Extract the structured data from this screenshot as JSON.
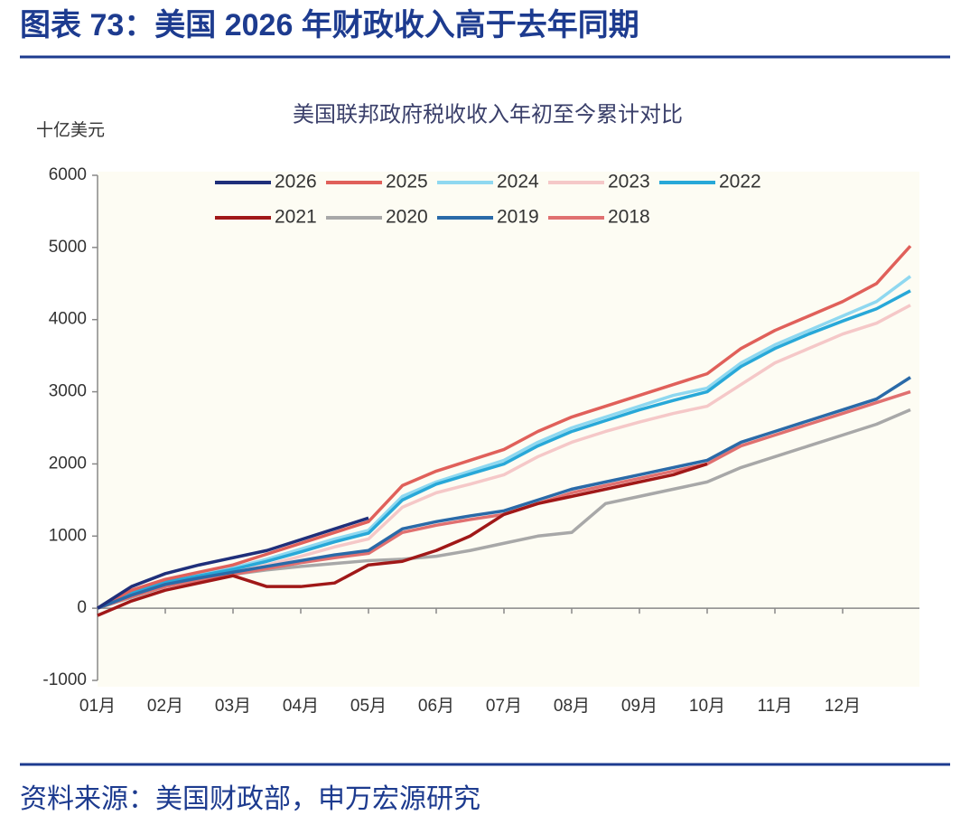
{
  "figure_title": "图表 73：美国 2026 年财政收入高于去年同期",
  "source": "资料来源：美国财政部，申万宏源研究",
  "chart_data": {
    "type": "line",
    "title": "美国联邦政府税收收入年初至今累计对比",
    "y_label": "十亿美元",
    "x": [
      0,
      0.5,
      1,
      1.5,
      2,
      2.5,
      3,
      3.5,
      4,
      4.5,
      5,
      5.5,
      6,
      6.5,
      7,
      7.5,
      8,
      8.5,
      9,
      9.5,
      10,
      10.5,
      11,
      11.5,
      12
    ],
    "xlim": [
      0,
      12
    ],
    "xticks": [
      {
        "value": 0,
        "label": "01月"
      },
      {
        "value": 1,
        "label": "02月"
      },
      {
        "value": 2,
        "label": "03月"
      },
      {
        "value": 3,
        "label": "04月"
      },
      {
        "value": 4,
        "label": "05月"
      },
      {
        "value": 5,
        "label": "06月"
      },
      {
        "value": 6,
        "label": "07月"
      },
      {
        "value": 7,
        "label": "08月"
      },
      {
        "value": 8,
        "label": "09月"
      },
      {
        "value": 9,
        "label": "10月"
      },
      {
        "value": 10,
        "label": "11月"
      },
      {
        "value": 11,
        "label": "12月"
      }
    ],
    "ylim": [
      -1000,
      6000
    ],
    "yticks": [
      -1000,
      0,
      1000,
      2000,
      3000,
      4000,
      5000,
      6000
    ],
    "series": [
      {
        "name": "2026",
        "color": "#1f2f7a",
        "values": [
          0,
          300,
          480,
          600,
          700,
          800,
          950,
          1100,
          1250,
          null,
          null,
          null,
          null,
          null,
          null,
          null,
          null,
          null,
          null,
          null,
          null,
          null,
          null,
          null,
          null
        ]
      },
      {
        "name": "2025",
        "color": "#e0605a",
        "values": [
          0,
          250,
          400,
          500,
          600,
          750,
          900,
          1050,
          1200,
          1700,
          1900,
          2050,
          2200,
          2450,
          2650,
          2800,
          2950,
          3100,
          3250,
          3600,
          3850,
          4050,
          4250,
          4500,
          5020
        ]
      },
      {
        "name": "2024",
        "color": "#8fd8f0",
        "values": [
          0,
          230,
          380,
          470,
          560,
          680,
          820,
          960,
          1080,
          1550,
          1750,
          1900,
          2050,
          2300,
          2500,
          2650,
          2800,
          2950,
          3050,
          3400,
          3650,
          3850,
          4050,
          4250,
          4600
        ]
      },
      {
        "name": "2023",
        "color": "#f5c8c8",
        "values": [
          0,
          200,
          340,
          420,
          500,
          600,
          720,
          850,
          960,
          1400,
          1600,
          1720,
          1850,
          2100,
          2300,
          2450,
          2580,
          2700,
          2800,
          3100,
          3400,
          3600,
          3800,
          3950,
          4200
        ]
      },
      {
        "name": "2022",
        "color": "#28a8d8",
        "values": [
          0,
          220,
          360,
          450,
          540,
          650,
          780,
          920,
          1040,
          1500,
          1720,
          1860,
          2000,
          2250,
          2450,
          2600,
          2750,
          2880,
          3000,
          3350,
          3600,
          3800,
          3980,
          4150,
          4400
        ]
      },
      {
        "name": "2021",
        "color": "#a01818",
        "values": [
          -100,
          100,
          250,
          350,
          450,
          300,
          300,
          350,
          600,
          650,
          800,
          1000,
          1300,
          1450,
          1550,
          1650,
          1750,
          1850,
          2000,
          null,
          null,
          null,
          null,
          null,
          null
        ]
      },
      {
        "name": "2020",
        "color": "#a8a8a8",
        "values": [
          0,
          150,
          300,
          400,
          470,
          530,
          580,
          620,
          660,
          680,
          720,
          800,
          900,
          1000,
          1050,
          1450,
          1550,
          1650,
          1750,
          1950,
          2100,
          2250,
          2400,
          2550,
          2750
        ]
      },
      {
        "name": "2019",
        "color": "#2a6aa8",
        "values": [
          0,
          180,
          330,
          420,
          500,
          580,
          660,
          740,
          800,
          1100,
          1200,
          1280,
          1350,
          1500,
          1650,
          1750,
          1850,
          1950,
          2050,
          2300,
          2450,
          2600,
          2750,
          2900,
          3200
        ]
      },
      {
        "name": "2018",
        "color": "#e07070",
        "values": [
          0,
          160,
          300,
          390,
          470,
          550,
          630,
          700,
          760,
          1050,
          1150,
          1230,
          1300,
          1450,
          1600,
          1700,
          1800,
          1900,
          2000,
          2250,
          2400,
          2550,
          2700,
          2850,
          3000
        ]
      }
    ]
  }
}
